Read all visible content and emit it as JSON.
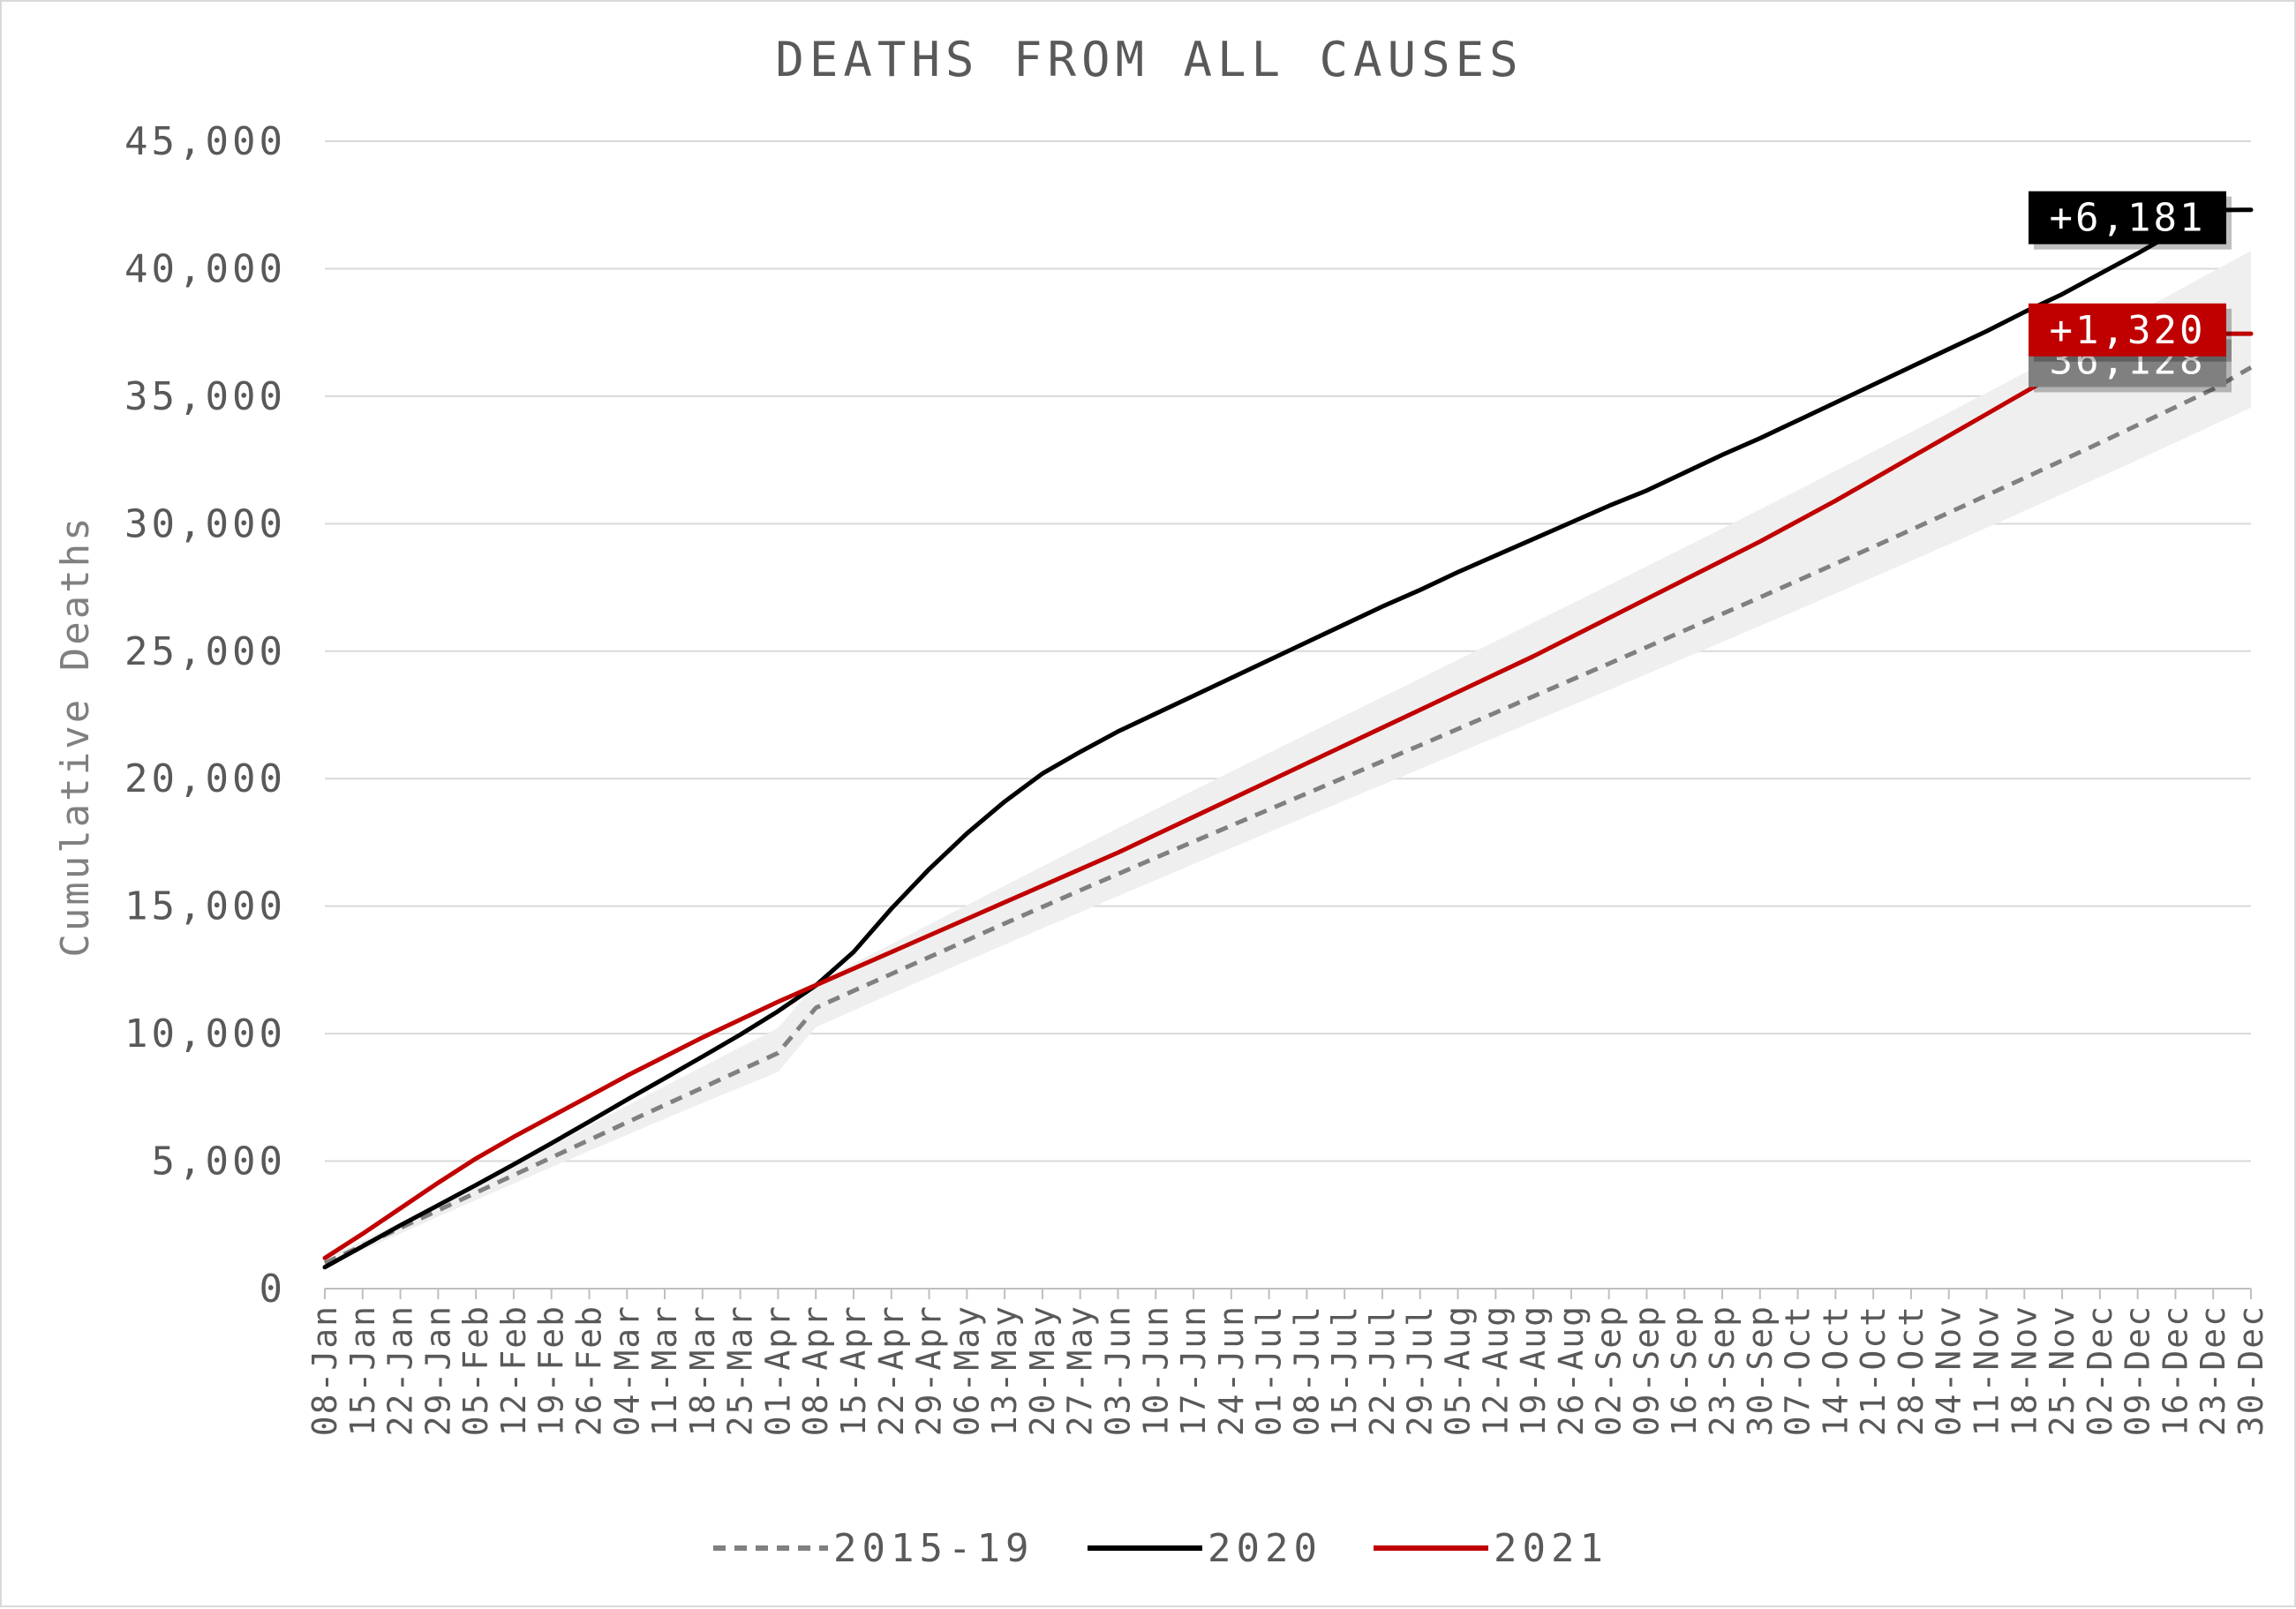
{
  "chart_data": {
    "type": "line",
    "title": "DEATHS FROM ALL CAUSES",
    "xlabel": "",
    "ylabel": "Cumulative Deaths",
    "ylim": [
      0,
      45000
    ],
    "ytick_step": 5000,
    "yticks": [
      "0",
      "5,000",
      "10,000",
      "15,000",
      "20,000",
      "25,000",
      "30,000",
      "35,000",
      "40,000",
      "45,000"
    ],
    "grid": "horizontal",
    "legend_position": "bottom",
    "categories": [
      "08-Jan",
      "15-Jan",
      "22-Jan",
      "29-Jan",
      "05-Feb",
      "12-Feb",
      "19-Feb",
      "26-Feb",
      "04-Mar",
      "11-Mar",
      "18-Mar",
      "25-Mar",
      "01-Apr",
      "08-Apr",
      "15-Apr",
      "22-Apr",
      "29-Apr",
      "06-May",
      "13-May",
      "20-May",
      "27-May",
      "03-Jun",
      "10-Jun",
      "17-Jun",
      "24-Jun",
      "01-Jul",
      "08-Jul",
      "15-Jul",
      "22-Jul",
      "29-Jul",
      "05-Aug",
      "12-Aug",
      "19-Aug",
      "26-Aug",
      "02-Sep",
      "09-Sep",
      "16-Sep",
      "23-Sep",
      "30-Sep",
      "07-Oct",
      "14-Oct",
      "21-Oct",
      "28-Oct",
      "04-Nov",
      "11-Nov",
      "18-Nov",
      "25-Nov",
      "02-Dec",
      "09-Dec",
      "16-Dec",
      "23-Dec",
      "30-Dec"
    ],
    "band": {
      "series": "2015-19",
      "lower": [
        830,
        1500,
        2160,
        2820,
        3470,
        4120,
        4760,
        5400,
        6030,
        6660,
        7280,
        7890,
        8500,
        10250,
        10910,
        11560,
        12210,
        12850,
        13490,
        14130,
        14760,
        15400,
        16020,
        16650,
        17280,
        17900,
        18520,
        19140,
        19760,
        20380,
        21000,
        21620,
        22240,
        22860,
        23480,
        24100,
        24730,
        25360,
        25990,
        26620,
        27260,
        27900,
        28540,
        29190,
        29840,
        30500,
        31160,
        31830,
        32500,
        33180,
        33870,
        34550
      ],
      "upper": [
        1170,
        1880,
        2600,
        3340,
        4090,
        4850,
        5620,
        6400,
        7170,
        7940,
        8700,
        9470,
        10220,
        11970,
        12750,
        13510,
        14280,
        15040,
        15800,
        16560,
        17310,
        18060,
        18800,
        19540,
        20280,
        21010,
        21740,
        22470,
        23200,
        23930,
        24660,
        25390,
        26120,
        26850,
        27590,
        28330,
        29070,
        29810,
        30560,
        31310,
        32070,
        32830,
        33590,
        34360,
        35130,
        35910,
        36700,
        37490,
        38290,
        39090,
        39900,
        40700
      ]
    },
    "series": [
      {
        "name": "2015-19",
        "color": "#808080",
        "style": "dashed",
        "values": [
          1000,
          1690,
          2380,
          3070,
          3760,
          4450,
          5140,
          5830,
          6520,
          7200,
          7880,
          8560,
          9240,
          11010,
          11680,
          12340,
          13000,
          13660,
          14320,
          14970,
          15620,
          16260,
          16900,
          17530,
          18160,
          18790,
          19420,
          20050,
          20680,
          21310,
          21950,
          22590,
          23230,
          23870,
          24510,
          25160,
          25810,
          26460,
          27110,
          27770,
          28430,
          29090,
          29760,
          30430,
          31110,
          31790,
          32480,
          33170,
          33870,
          34570,
          35280,
          36128
        ]
      },
      {
        "name": "2020",
        "color": "#000000",
        "style": "solid",
        "values": [
          840,
          1660,
          2480,
          3270,
          4060,
          4870,
          5700,
          6550,
          7410,
          8250,
          9100,
          9960,
          10880,
          11890,
          13200,
          14900,
          16450,
          17850,
          19100,
          20200,
          21050,
          21850,
          22550,
          23250,
          23950,
          24650,
          25350,
          26050,
          26750,
          27400,
          28100,
          28750,
          29400,
          30050,
          30700,
          31300,
          32000,
          32700,
          33350,
          34050,
          34750,
          35450,
          36150,
          36850,
          37550,
          38300,
          39000,
          39800,
          40600,
          41450,
          42300,
          42309
        ]
      },
      {
        "name": "2021",
        "color": "#c00000",
        "style": "solid",
        "values": [
          1200,
          2150,
          3150,
          4150,
          5100,
          5950,
          6750,
          7550,
          8350,
          9100,
          9850,
          10550,
          11250,
          11900,
          12550,
          13200,
          13850,
          14500,
          15150,
          15800,
          16450,
          17100,
          17800,
          18500,
          19200,
          19900,
          20600,
          21300,
          22000,
          22700,
          23400,
          24100,
          24800,
          25550,
          26300,
          27050,
          27800,
          28550,
          29300,
          30100,
          30900,
          31750,
          32600,
          33450,
          34300,
          35150,
          36000,
          36850,
          37448,
          37448,
          37448,
          37448
        ]
      }
    ],
    "callouts": [
      {
        "label": "+6,181",
        "bg": "#000000",
        "value": 42000
      },
      {
        "label": "+1,320",
        "bg": "#c00000",
        "value": 37600
      },
      {
        "label": "36,128",
        "bg": "#808080",
        "value": 36400
      }
    ]
  }
}
